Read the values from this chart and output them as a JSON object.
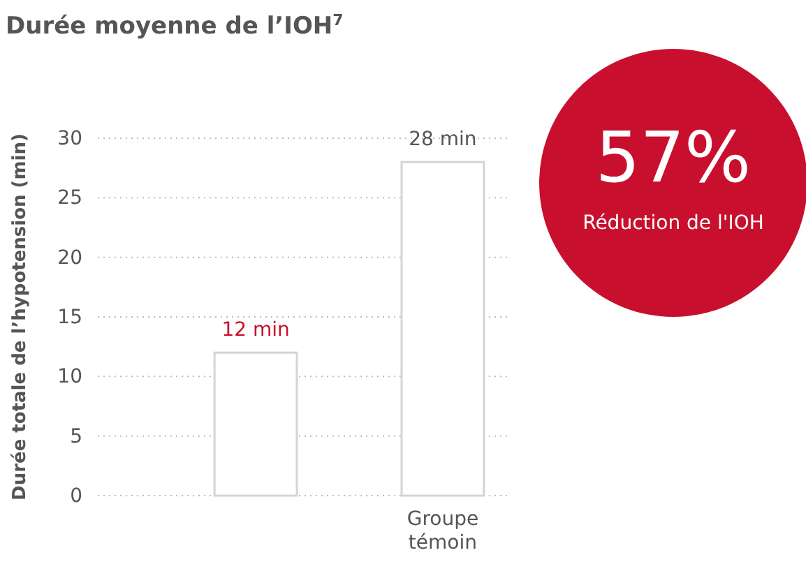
{
  "chart_data": {
    "type": "bar",
    "title": "Durée moyenne de l’IOH$^{7}$",
    "ylabel": "Durée totale de l’hypotension (min)",
    "categories": [
      null,
      "Groupe témoin"
    ],
    "values": [
      12,
      28
    ],
    "value_labels": [
      "12 min",
      "28 min"
    ],
    "color": "#d4d4d4",
    "ylim": [
      0,
      30
    ],
    "yticks": [
      0,
      5,
      10,
      15,
      20,
      25,
      30
    ],
    "grid": "y",
    "annotations": [
      "57%",
      "Réduction de l'IOH"
    ]
  }
}
